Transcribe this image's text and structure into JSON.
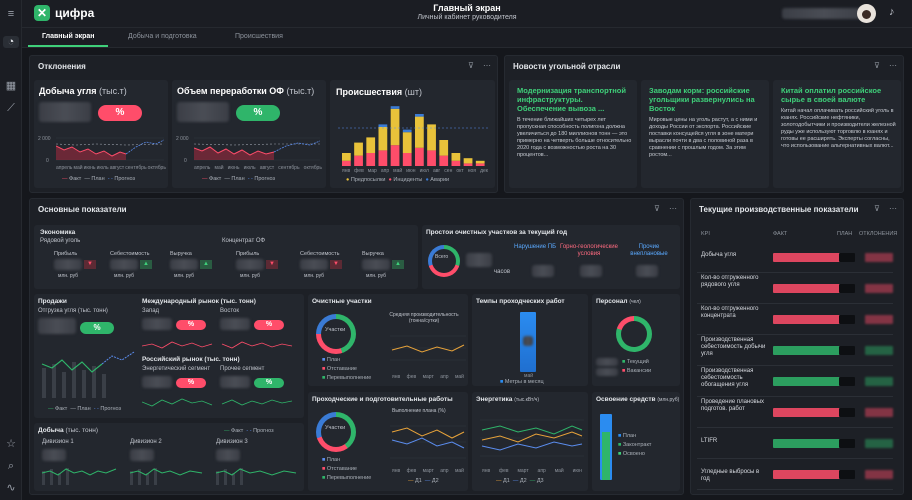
{
  "app": {
    "logo_text": "цифра",
    "title": "Главный экран",
    "subtitle": "Личный кабинет руководителя"
  },
  "rail_icons": [
    "menu-icon",
    "dashboard-icon",
    "table-icon",
    "chart-icon",
    "star-icon",
    "search-icon",
    "pulse-icon"
  ],
  "tabs": [
    "Главный экран",
    "Добыча и подготовка",
    "Происшествия"
  ],
  "deviations": {
    "title": "Отклонения",
    "coal": {
      "title": "Добыча угля",
      "unit": "(тыс.т)",
      "pct": "%",
      "y": [
        "2 000",
        "0"
      ],
      "x": [
        "апрель",
        "май",
        "июнь",
        "июль",
        "август",
        "сентябрь",
        "октябрь"
      ],
      "legend": [
        "Факт",
        "План",
        "Прогноз"
      ]
    },
    "processing": {
      "title": "Объем переработки ОФ",
      "unit": "(тыс.т)",
      "pct": "%",
      "y": [
        "2 000",
        "0"
      ],
      "x": [
        "апрель",
        "май",
        "июнь",
        "июль",
        "август",
        "сентябрь",
        "октябрь"
      ],
      "legend": [
        "Факт",
        "План",
        "Прогноз"
      ]
    },
    "incidents": {
      "title": "Происшествия",
      "unit": "(шт)",
      "x": [
        "янв",
        "фев",
        "мар",
        "апр",
        "май",
        "июн",
        "июл",
        "авг",
        "сен",
        "окт",
        "ноя",
        "дек"
      ],
      "legend": [
        "Предпосылки",
        "Инциденты",
        "Аварии"
      ],
      "colors": [
        "#e8c23a",
        "#ff4d6a",
        "#3a7bd5"
      ]
    }
  },
  "news": {
    "title": "Новости угольной отрасли",
    "items": [
      {
        "h": "Модернизация транспортной инфраструктуры. Обеспечение вывоза ...",
        "b": "В течение ближайших четырех лет пропускная способность полигона должна увеличиться до 180 миллионов тонн — это примерно на четверть больше относительно 2020 года с возможностью роста на 30 процентов..."
      },
      {
        "h": "Заводам корм: российские угольщики развернулись на Восток",
        "b": "Мировые цены на уголь растут, а с ними и доходы России от экспорта. Российские поставки консущейся угля в зоне матери вырасли почти в два с половиной раза в сравнении с прошлым годом. За этим ростом..."
      },
      {
        "h": "Китай оплатил российское сырье в своей валюте",
        "b": "Китай начал оплачивать российский уголь в юанях. Российские нефтяники, золотодобытчики и производители железной руды уже используют торговлю в юанях и готовы ее расширять. Эксперты согласны, что использование альтернативных валют..."
      }
    ]
  },
  "main": {
    "title": "Основные показатели",
    "economy": {
      "title": "Экономика",
      "sub1": "Рядовой уголь",
      "sub2": "Концентрат ОФ",
      "metrics": [
        "Прибыль",
        "Себестоимость",
        "Выручка",
        "Прибыль",
        "Себестоимость",
        "Выручка"
      ],
      "unit": "млн. руб"
    },
    "downtime": {
      "title": "Простои очистных участков за текущий год",
      "all": "Всего",
      "hours": "часов",
      "cats": [
        "Нарушение ПБ",
        "Горно-геологические условия",
        "Прочие внеплановые"
      ]
    },
    "sales": {
      "title": "Продажи",
      "sub": "Отгрузка угля (тыс. тонн)",
      "pct": "%",
      "legend": [
        "Факт",
        "План",
        "Прогноз"
      ]
    },
    "intl": {
      "title": "Международный рынок (тыс. тонн)",
      "west": "Запад",
      "east": "Восток",
      "pct": "%"
    },
    "ru": {
      "title": "Российский рынок (тыс. тонн)",
      "energy": "Энергетический сегмент",
      "other": "Прочее сегмент",
      "pct": "%"
    },
    "mining": {
      "title": "Добыча",
      "unit": "(тыс. тонн)",
      "legend": [
        "Факт",
        "Прогноз"
      ],
      "items": [
        "Дивизион 1",
        "Дивизион 2",
        "Дивизион 3"
      ]
    },
    "faces": {
      "title": "Очистные участки",
      "center": "Участки",
      "legend": [
        "План",
        "Отставание",
        "Перевыполнение"
      ],
      "chart_title": "Средняя производительность (тонна/сутки)",
      "x": [
        "янв",
        "фев",
        "март",
        "апр",
        "май"
      ]
    },
    "tunneling": {
      "title": "Проходческие и подготовительные работы",
      "center": "Участки",
      "legend": [
        "План",
        "Отставание",
        "Перевыполнение"
      ],
      "chart_title": "Выполнение плана (%)",
      "x": [
        "янв",
        "фев",
        "март",
        "апр",
        "май"
      ],
      "series": [
        "Д1",
        "Д2"
      ]
    },
    "tempo": {
      "title": "Темпы проходческих работ",
      "legend": "Метры в месяц",
      "x": "май"
    },
    "staff": {
      "title": "Персонал",
      "unit": "(чел)",
      "legend": [
        "Текущий",
        "Вакансии"
      ]
    },
    "energy": {
      "title": "Энергетика",
      "unit": "(тыс.кВт/ч)",
      "x": [
        "янв",
        "фев",
        "март",
        "апр",
        "май",
        "июн"
      ],
      "series": [
        "Д1",
        "Д2",
        "Д3"
      ]
    },
    "funds": {
      "title": "Освоение средств",
      "unit": "(млн.руб)",
      "legend": [
        "План",
        "Законтракт",
        "Освоено"
      ]
    }
  },
  "current": {
    "title": "Текущие производственные показатели",
    "cols": [
      "KPI",
      "ФАКТ",
      "ПЛАН",
      "ОТКЛОНЕНИЯ"
    ],
    "rows": [
      "Добыча угля",
      "Кол-во отгруженного рядового угля",
      "Кол-во отгруженного концентрата",
      "Производственная себестоимость добычи угля",
      "Производственная себестоимость обогащения угля",
      "Проведение плановых подготов. работ",
      "LTIFR",
      "Угледные выбросы в год"
    ],
    "colors": [
      "#ff4d6a",
      "#ff4d6a",
      "#ff4d6a",
      "#2fb56a",
      "#2fb56a",
      "#ff4d6a",
      "#2fb56a",
      "#ff4d6a"
    ]
  }
}
